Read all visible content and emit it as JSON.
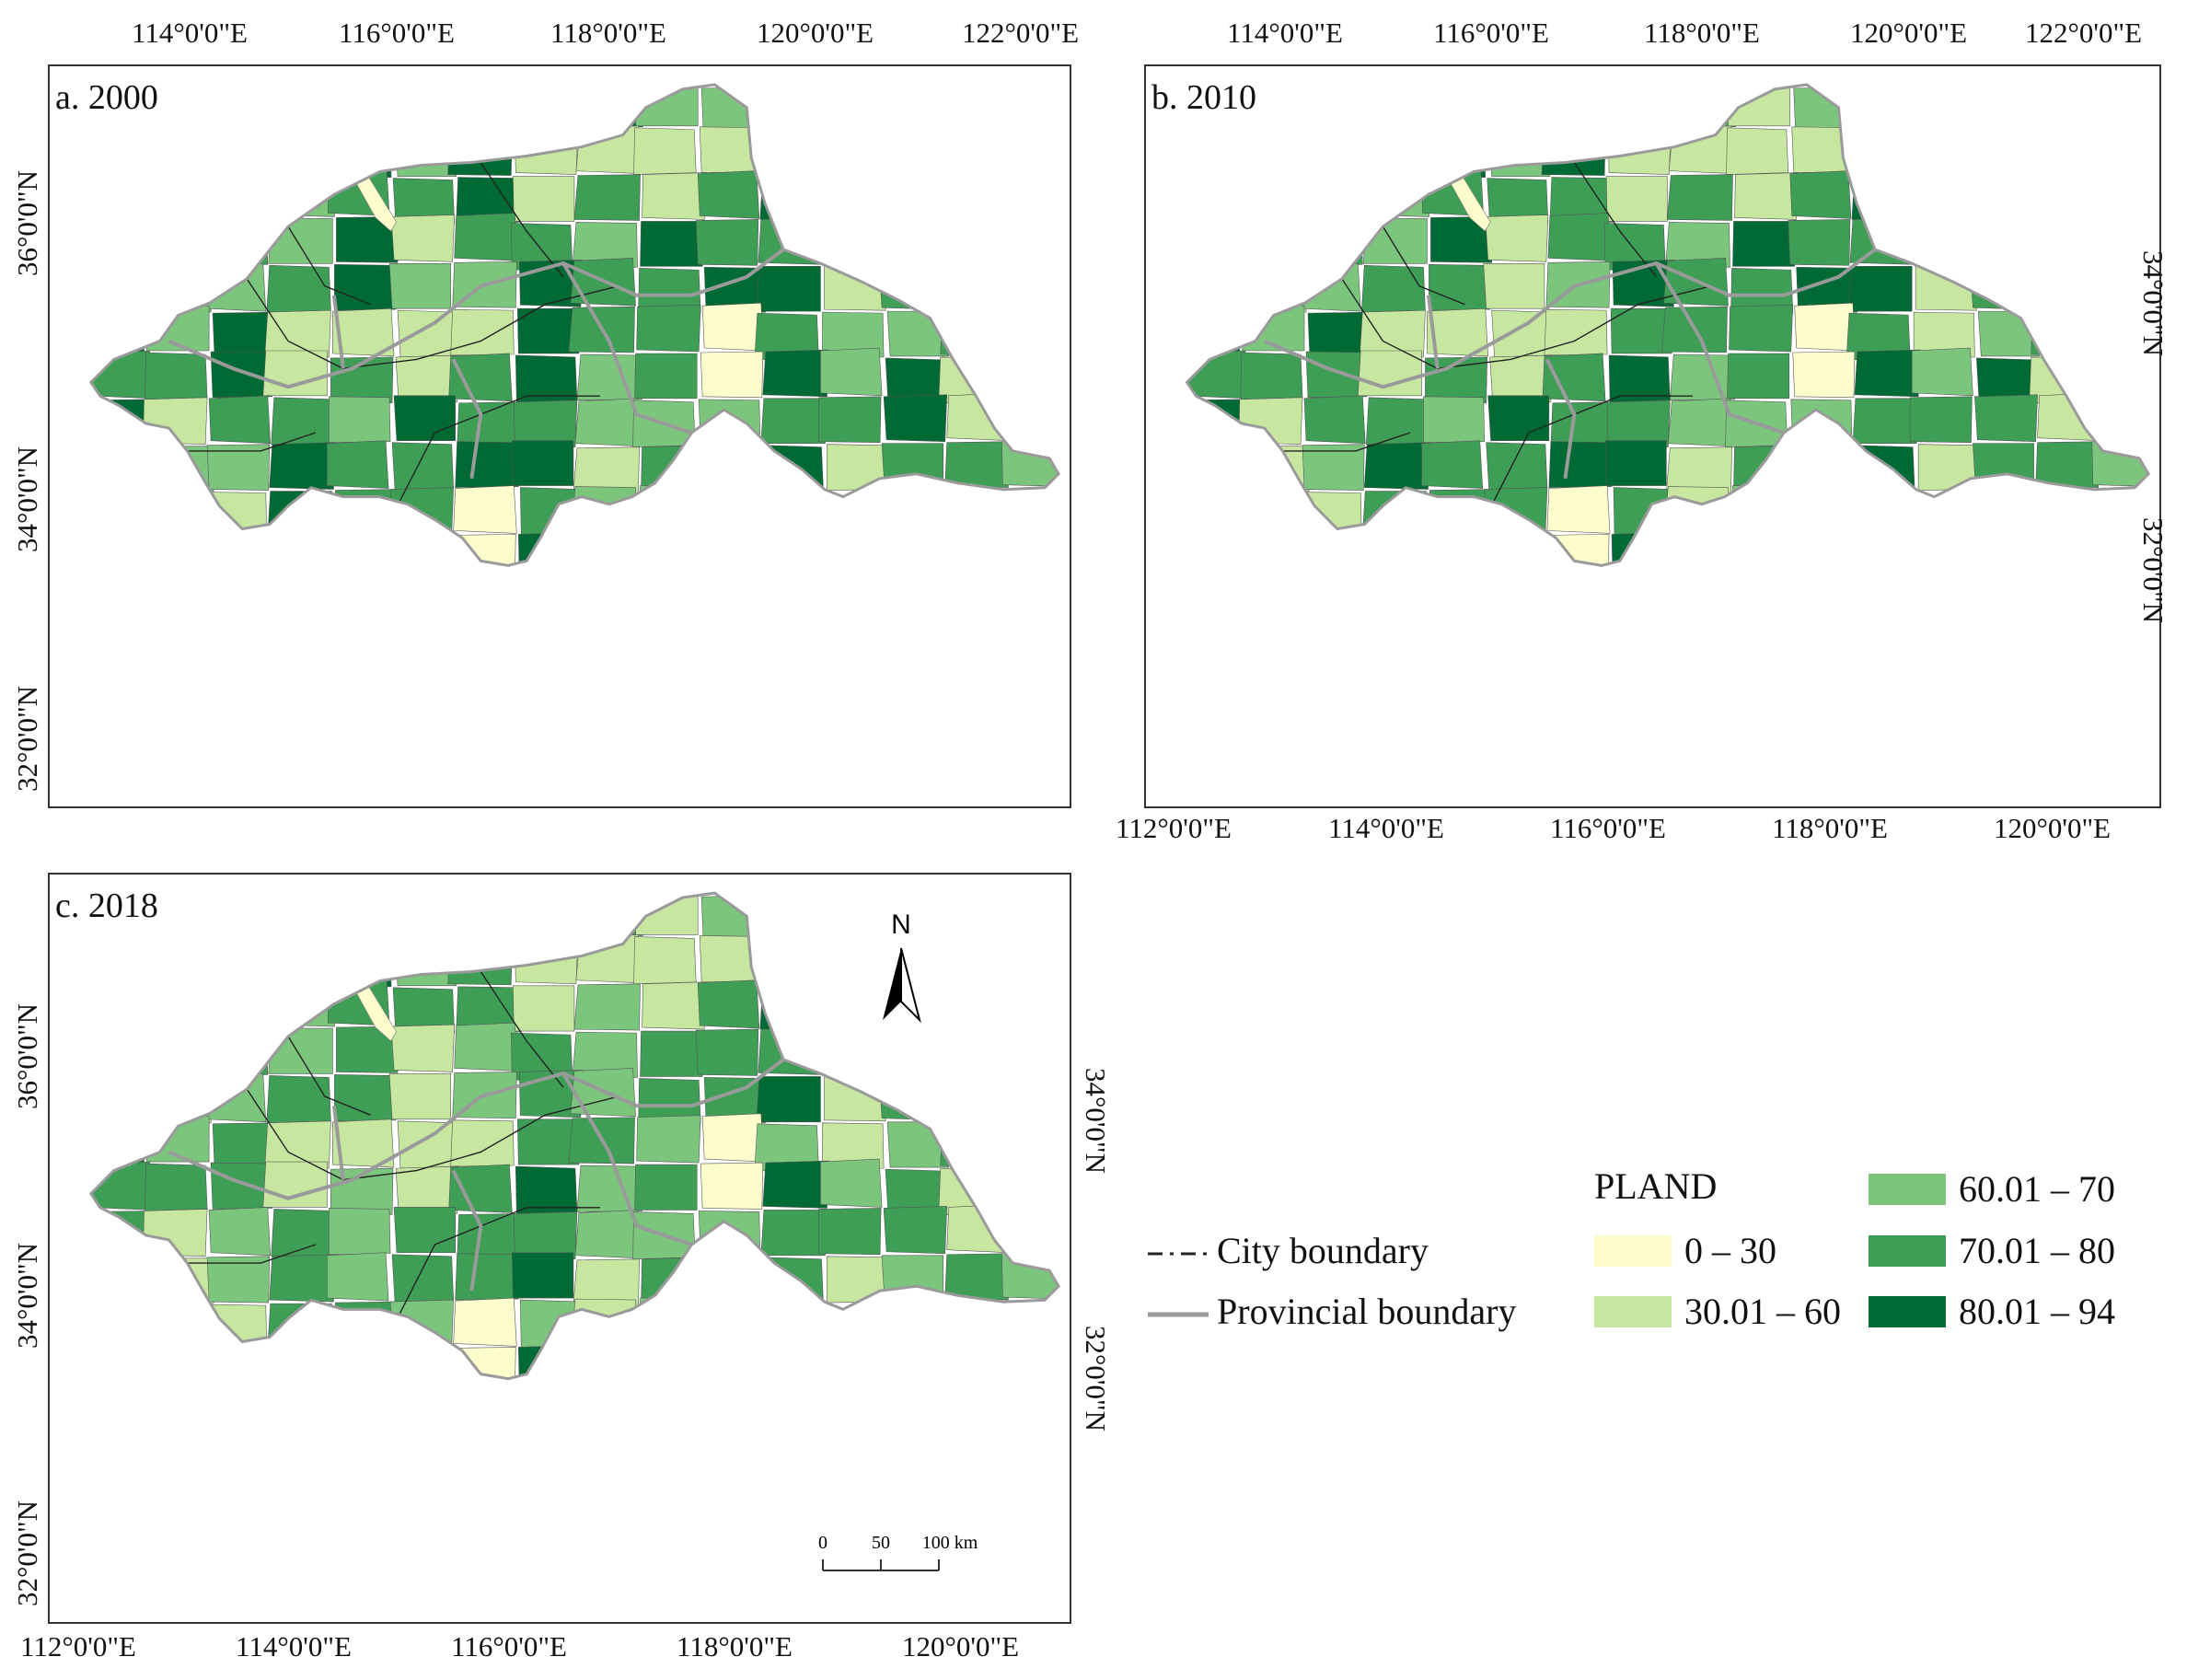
{
  "colors": {
    "c1": "#fcfccd",
    "c2": "#c7e6a0",
    "c3": "#7cc57d",
    "c4": "#3e9e56",
    "c5": "#006a35",
    "province_line": "#9a9a9a",
    "city_line": "#222222"
  },
  "panels": [
    {
      "title": "a. 2000",
      "top_labels": [
        "114°0'0\"E",
        "116°0'0\"E",
        "118°0'0\"E",
        "120°0'0\"E",
        "122°0'0\"E"
      ],
      "left_labels": [
        "36°0'0\"N",
        "34°0'0\"N",
        "32°0'0\"N"
      ],
      "region_classes": [
        "c5",
        "c4",
        "c5",
        "c4",
        "c3",
        "c2",
        "c3",
        "c4",
        "c5",
        "c5",
        "c4",
        "c3",
        "c4",
        "c5",
        "c4",
        "c3",
        "c2",
        "c3",
        "c4",
        "c5",
        "c2",
        "c1",
        "c3",
        "c4",
        "c5",
        "c4",
        "c3",
        "c2",
        "c4",
        "c5",
        "c3",
        "c4",
        "c5",
        "c4",
        "c2",
        "c3",
        "c4",
        "c5",
        "c4",
        "c2",
        "c1",
        "c2",
        "c3",
        "c4",
        "c2",
        "c3",
        "c4",
        "c5"
      ]
    },
    {
      "title": "b. 2010",
      "top_labels": [
        "114°0'0\"E",
        "116°0'0\"E",
        "118°0'0\"E",
        "120°0'0\"E",
        "122°0'0\"E"
      ],
      "right_labels": [
        "34°0'0\"N",
        "32°0'0\"N"
      ],
      "bottom_labels": [
        "112°0'0\"E",
        "114°0'0\"E",
        "116°0'0\"E",
        "118°0'0\"E",
        "120°0'0\"E"
      ],
      "region_classes": [
        "c4",
        "c4",
        "c5",
        "c4",
        "c3",
        "c2",
        "c3",
        "c4",
        "c4",
        "c5",
        "c4",
        "c3",
        "c4",
        "c5",
        "c4",
        "c2",
        "c2",
        "c3",
        "c4",
        "c5",
        "c2",
        "c1",
        "c3",
        "c4",
        "c5",
        "c4",
        "c3",
        "c2",
        "c4",
        "c5",
        "c3",
        "c4",
        "c4",
        "c4",
        "c2",
        "c2",
        "c4",
        "c5",
        "c4",
        "c2",
        "c1",
        "c2",
        "c3",
        "c4",
        "c2",
        "c3",
        "c4",
        "c5"
      ]
    },
    {
      "title": "c. 2018",
      "left_labels": [
        "36°0'0\"N",
        "34°0'0\"N",
        "32°0'0\"N"
      ],
      "right_labels": [
        "34°0'0\"N",
        "32°0'0\"N"
      ],
      "bottom_labels": [
        "112°0'0\"E",
        "114°0'0\"E",
        "116°0'0\"E",
        "118°0'0\"E",
        "120°0'0\"E"
      ],
      "north_label": "N",
      "scale_labels": [
        "0",
        "50",
        "100 km"
      ],
      "region_classes": [
        "c4",
        "c4",
        "c4",
        "c3",
        "c3",
        "c2",
        "c3",
        "c4",
        "c4",
        "c5",
        "c4",
        "c3",
        "c4",
        "c4",
        "c3",
        "c2",
        "c2",
        "c3",
        "c4",
        "c5",
        "c2",
        "c1",
        "c3",
        "c4",
        "c4",
        "c4",
        "c3",
        "c2",
        "c3",
        "c4",
        "c3",
        "c4",
        "c4",
        "c4",
        "c2",
        "c2",
        "c3",
        "c4",
        "c4",
        "c2",
        "c1",
        "c2",
        "c3",
        "c4",
        "c2",
        "c3",
        "c3",
        "c5"
      ]
    }
  ],
  "legend": {
    "title": "PLAND",
    "city_boundary": "City boundary",
    "provincial_boundary": "Provincial boundary",
    "classes": [
      "0 – 30",
      "30.01 – 60",
      "60.01 – 70",
      "70.01 – 80",
      "80.01 – 94"
    ]
  }
}
